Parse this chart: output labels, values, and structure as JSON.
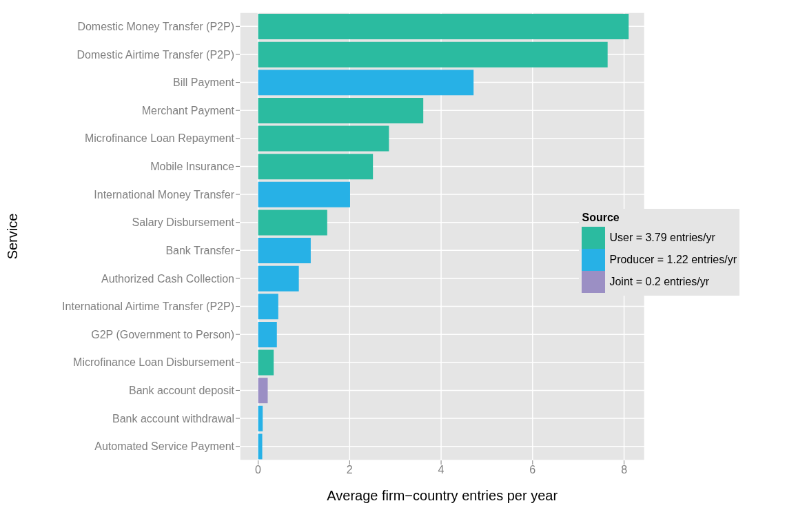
{
  "chart_data": {
    "type": "bar",
    "orientation": "horizontal",
    "stacked": true,
    "xlabel": "Average firm−country entries per year",
    "ylabel": "Service",
    "legend_title": "Source",
    "categories": [
      "Domestic Money Transfer (P2P)",
      "Domestic Airtime Transfer (P2P)",
      "Bill Payment",
      "Merchant Payment",
      "Microfinance Loan Repayment",
      "Mobile Insurance",
      "International Money Transfer",
      "Salary Disbursement",
      "Bank Transfer",
      "Authorized Cash Collection",
      "International Airtime Transfer (P2P)",
      "G2P (Government to Person)",
      "Microfinance Loan Disbursement",
      "Bank account deposit",
      "Bank account withdrawal",
      "Automated Service Payment"
    ],
    "series": [
      {
        "name": "User =  3.79 entries/yr",
        "color": "#2bbba0",
        "values": [
          8.1,
          7.64,
          null,
          3.61,
          2.86,
          2.51,
          null,
          1.51,
          null,
          null,
          null,
          null,
          0.34,
          null,
          null,
          null
        ]
      },
      {
        "name": "Producer =  1.22 entries/yr",
        "color": "#27b1e6",
        "values": [
          null,
          null,
          4.71,
          null,
          null,
          null,
          2.01,
          null,
          1.15,
          0.89,
          0.44,
          0.41,
          null,
          null,
          0.1,
          0.09
        ]
      },
      {
        "name": "Joint =  0.2 entries/yr",
        "color": "#9b8fc4",
        "values": [
          null,
          null,
          null,
          null,
          null,
          null,
          null,
          null,
          null,
          null,
          null,
          null,
          null,
          0.21,
          null,
          null
        ]
      }
    ],
    "xlim": [
      -0.4,
      8.45
    ],
    "xticks": [
      0,
      2,
      4,
      6,
      8
    ],
    "grid": true,
    "legend": "right"
  }
}
